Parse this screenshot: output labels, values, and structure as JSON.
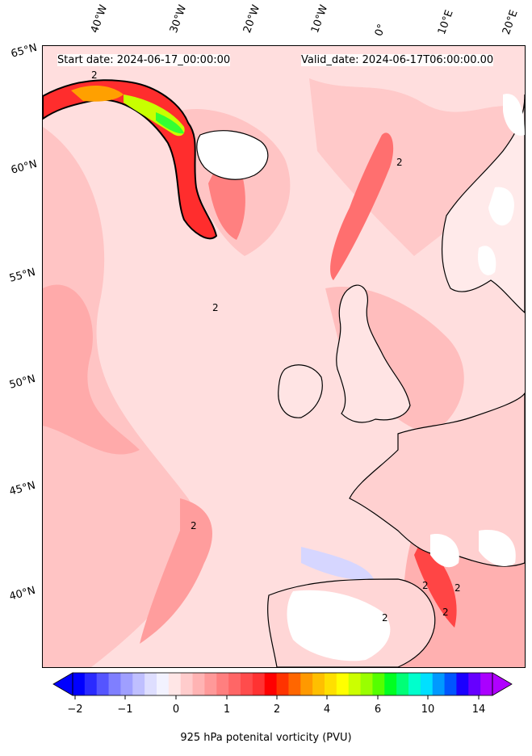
{
  "header": {
    "start_date": "Start date: 2024-06-17_00:00:00",
    "valid_date": "Valid_date: 2024-06-17T06:00:00.00"
  },
  "lon_labels": [
    "40°W",
    "30°W",
    "20°W",
    "10°W",
    "0°",
    "10°E",
    "20°E"
  ],
  "lat_labels": [
    "65°N",
    "60°N",
    "55°N",
    "50°N",
    "45°N",
    "40°N"
  ],
  "colorbar": {
    "label": "925 hPa potenital vorticity (PVU)",
    "tick_labels": [
      "−2",
      "−1",
      "0",
      "1",
      "2",
      "4",
      "6",
      "10",
      "14"
    ],
    "colors": [
      "#0000ff",
      "#2a2aff",
      "#5555ff",
      "#7f7fff",
      "#9f9fff",
      "#bfbfff",
      "#dedeff",
      "#f2f2ff",
      "#ffe6e6",
      "#ffcccc",
      "#ffb3b3",
      "#ff9999",
      "#ff7f7f",
      "#ff6666",
      "#ff4c4c",
      "#ff3232",
      "#ff0000",
      "#ff3300",
      "#ff6600",
      "#ff9900",
      "#ffbf00",
      "#ffdf00",
      "#ffff00",
      "#ccff00",
      "#99ff00",
      "#55ff00",
      "#00ff22",
      "#00ff77",
      "#00ffcc",
      "#00e0ff",
      "#0099ff",
      "#0055ff",
      "#1a00ff",
      "#6600ff",
      "#aa00ff"
    ],
    "extend_low": "#0000ff",
    "extend_high": "#b000ff"
  },
  "contour_labels": [
    "2",
    "2",
    "2",
    "2",
    "2",
    "2",
    "2",
    "2"
  ]
}
